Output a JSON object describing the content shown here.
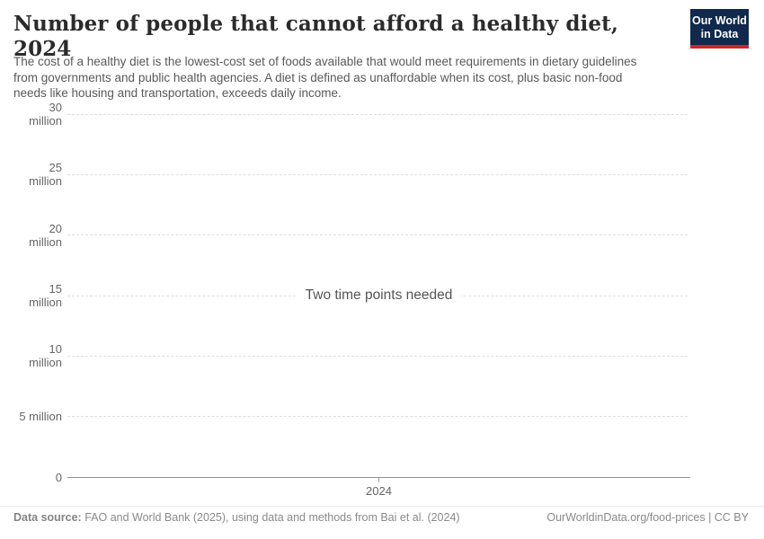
{
  "header": {
    "title": "Number of people that cannot afford a healthy diet, 2024",
    "subtitle": "The cost of a healthy diet is the lowest-cost set of foods available that would meet requirements in dietary guidelines from governments and public health agencies. A diet is defined as unaffordable when its cost, plus basic non-food needs like housing and transportation, exceeds daily income.",
    "logo": {
      "line1": "Our World",
      "line2": "in Data",
      "bg_color": "#10294d",
      "stripe_color": "#cb2821"
    }
  },
  "chart_data": {
    "type": "line",
    "title": "Number of people that cannot afford a healthy diet, 2024",
    "series": [],
    "message": "Two time points needed",
    "x": [
      2024
    ],
    "xtick_labels": [
      "2024"
    ],
    "yticks": [
      {
        "value": 0,
        "label": "0"
      },
      {
        "value": 5000000,
        "label": "5 million"
      },
      {
        "value": 10000000,
        "label": "10 million"
      },
      {
        "value": 15000000,
        "label": "15 million"
      },
      {
        "value": 20000000,
        "label": "20 million"
      },
      {
        "value": 25000000,
        "label": "25 million"
      },
      {
        "value": 30000000,
        "label": "30 million"
      }
    ],
    "ylim": [
      0,
      30000000
    ],
    "grid": true,
    "legend": false,
    "colors": {
      "gridline": "#dedede",
      "axis_line": "#8f8f8f",
      "tick_text": "#666666",
      "message_text": "#555555"
    }
  },
  "footer": {
    "data_source_label": "Data source:",
    "data_source_text": "FAO and World Bank (2025), using data and methods from Bai et al. (2024)",
    "link_text": "OurWorldinData.org/food-prices | CC BY"
  }
}
